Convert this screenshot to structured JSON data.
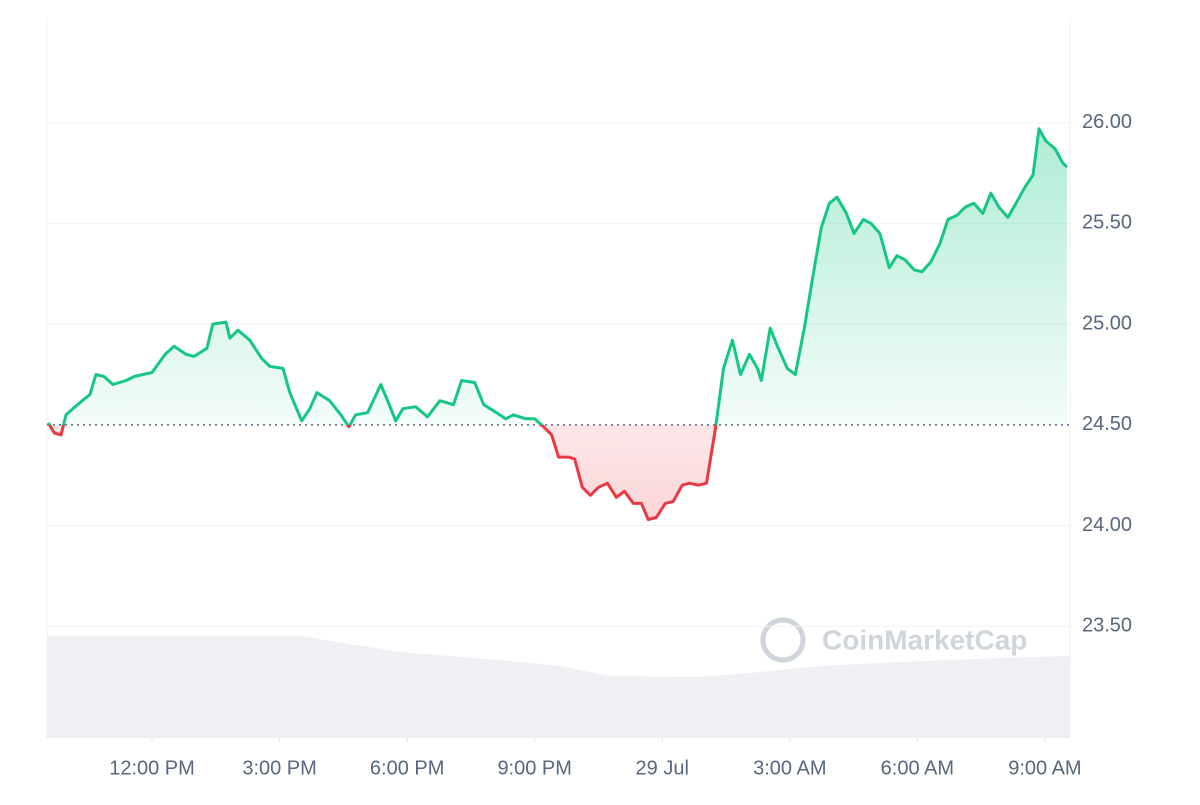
{
  "chart_data": {
    "type": "line",
    "watermark": "CoinMarketCap",
    "baseline": 24.5,
    "color": "#16c784",
    "negative_color": "#ea3943",
    "grid": true,
    "xlim": [
      9.53,
      33.59
    ],
    "xticks": [
      {
        "value": 12,
        "label": "12:00 PM"
      },
      {
        "value": 15,
        "label": "3:00 PM"
      },
      {
        "value": 18,
        "label": "6:00 PM"
      },
      {
        "value": 21,
        "label": "9:00 PM"
      },
      {
        "value": 24,
        "label": "29 Jul"
      },
      {
        "value": 27,
        "label": "3:00 AM"
      },
      {
        "value": 30,
        "label": "6:00 AM"
      },
      {
        "value": 33,
        "label": "9:00 AM"
      }
    ],
    "ylim": [
      22.95,
      26.52
    ],
    "yticks": [
      {
        "value": 23.5,
        "label": "23.50"
      },
      {
        "value": 24,
        "label": "24.00"
      },
      {
        "value": 24.5,
        "label": "24.50"
      },
      {
        "value": 25,
        "label": "25.00"
      },
      {
        "value": 25.5,
        "label": "25.50"
      },
      {
        "value": 26,
        "label": "26.00"
      }
    ],
    "x": [
      9.56,
      9.7,
      9.86,
      9.98,
      10.14,
      10.36,
      10.54,
      10.68,
      10.87,
      11.08,
      11.39,
      11.58,
      12.0,
      12.31,
      12.52,
      12.8,
      12.99,
      13.29,
      13.43,
      13.74,
      13.83,
      14.02,
      14.3,
      14.58,
      14.77,
      15.08,
      15.24,
      15.52,
      15.71,
      15.88,
      16.18,
      16.44,
      16.63,
      16.79,
      17.07,
      17.38,
      17.54,
      17.73,
      17.9,
      18.2,
      18.48,
      18.77,
      19.09,
      19.28,
      19.59,
      19.8,
      20.03,
      20.32,
      20.5,
      20.79,
      21.0,
      21.21,
      21.4,
      21.56,
      21.8,
      21.94,
      22.12,
      22.31,
      22.5,
      22.71,
      22.92,
      23.11,
      23.32,
      23.51,
      23.67,
      23.86,
      24.07,
      24.26,
      24.47,
      24.64,
      24.85,
      25.04,
      25.25,
      25.44,
      25.65,
      25.84,
      26.05,
      26.24,
      26.33,
      26.54,
      26.73,
      26.94,
      27.13,
      27.34,
      27.53,
      27.74,
      27.93,
      28.11,
      28.33,
      28.51,
      28.73,
      28.91,
      29.12,
      29.34,
      29.52,
      29.71,
      29.92,
      30.11,
      30.32,
      30.53,
      30.72,
      30.93,
      31.12,
      31.33,
      31.54,
      31.73,
      31.92,
      32.13,
      32.32,
      32.53,
      32.72,
      32.86,
      33.02,
      33.24,
      33.42,
      33.52
    ],
    "values": [
      24.51,
      24.46,
      24.45,
      24.55,
      24.58,
      24.62,
      24.65,
      24.75,
      24.74,
      24.7,
      24.72,
      24.74,
      24.76,
      24.85,
      24.89,
      24.85,
      24.84,
      24.88,
      25.0,
      25.01,
      24.93,
      24.97,
      24.92,
      24.83,
      24.79,
      24.78,
      24.66,
      24.52,
      24.58,
      24.66,
      24.62,
      24.55,
      24.49,
      24.55,
      24.56,
      24.7,
      24.62,
      24.52,
      24.58,
      24.59,
      24.54,
      24.62,
      24.6,
      24.72,
      24.71,
      24.6,
      24.57,
      24.53,
      24.55,
      24.53,
      24.53,
      24.49,
      24.45,
      24.34,
      24.34,
      24.33,
      24.19,
      24.15,
      24.19,
      24.21,
      24.14,
      24.17,
      24.11,
      24.11,
      24.03,
      24.04,
      24.11,
      24.12,
      24.2,
      24.21,
      24.2,
      24.21,
      24.48,
      24.78,
      24.92,
      24.75,
      24.85,
      24.78,
      24.72,
      24.98,
      24.88,
      24.78,
      24.75,
      24.98,
      25.22,
      25.48,
      25.6,
      25.63,
      25.55,
      25.45,
      25.52,
      25.5,
      25.45,
      25.28,
      25.34,
      25.32,
      25.27,
      25.26,
      25.31,
      25.4,
      25.52,
      25.54,
      25.58,
      25.6,
      25.55,
      25.65,
      25.58,
      25.53,
      25.6,
      25.68,
      25.74,
      25.97,
      25.91,
      25.87,
      25.8,
      25.78
    ]
  }
}
